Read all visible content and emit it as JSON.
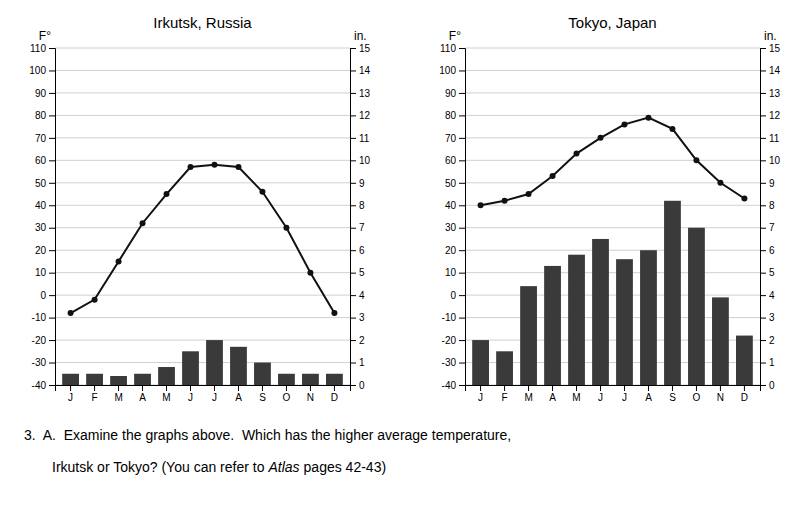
{
  "chart_data": [
    {
      "type": "bar_line",
      "title": "Irkutsk, Russia",
      "categories": [
        "J",
        "F",
        "M",
        "A",
        "M",
        "J",
        "J",
        "A",
        "S",
        "O",
        "N",
        "D"
      ],
      "series": [
        {
          "type": "bar",
          "axis": "y2",
          "color": "#3a3a3a",
          "values": [
            0.5,
            0.5,
            0.4,
            0.5,
            0.8,
            1.5,
            2.0,
            1.7,
            1.0,
            0.5,
            0.5,
            0.5
          ]
        },
        {
          "type": "line",
          "color": "#111111",
          "marker": "circle",
          "values": [
            -8,
            -2,
            15,
            32,
            45,
            57,
            58,
            57,
            46,
            30,
            10,
            -8
          ]
        }
      ],
      "ylabel": "F°",
      "y2label": "in.",
      "ylim": [
        -40,
        110
      ],
      "yticks": [
        -40,
        -30,
        -20,
        -10,
        0,
        10,
        20,
        30,
        40,
        50,
        60,
        70,
        80,
        90,
        100,
        110
      ],
      "y2lim": [
        0,
        15
      ],
      "y2ticks": [
        0,
        1,
        2,
        3,
        4,
        5,
        6,
        7,
        8,
        9,
        10,
        11,
        12,
        13,
        14,
        15
      ],
      "grid": true,
      "annotations": [
        "3.  A.  Examine the graphs above.  Which has the higher average temperature,",
        "Irkutsk or Tokyo? (You can refer to",
        "Atlas",
        "pages 42-43)"
      ]
    },
    {
      "type": "bar_line",
      "title": "Tokyo, Japan",
      "categories": [
        "J",
        "F",
        "M",
        "A",
        "M",
        "J",
        "J",
        "A",
        "S",
        "O",
        "N",
        "D"
      ],
      "series": [
        {
          "type": "bar",
          "axis": "y2",
          "color": "#3a3a3a",
          "values": [
            2.0,
            1.5,
            4.4,
            5.3,
            5.8,
            6.5,
            5.6,
            6.0,
            8.2,
            7.0,
            3.9,
            2.2
          ]
        },
        {
          "type": "line",
          "color": "#111111",
          "marker": "circle",
          "values": [
            40,
            42,
            45,
            53,
            63,
            70,
            76,
            79,
            74,
            60,
            50,
            43
          ]
        }
      ],
      "ylabel": "F°",
      "y2label": "in.",
      "ylim": [
        -40,
        110
      ],
      "yticks": [
        -40,
        -30,
        -20,
        -10,
        0,
        10,
        20,
        30,
        40,
        50,
        60,
        70,
        80,
        90,
        100,
        110
      ],
      "y2lim": [
        0,
        15
      ],
      "y2ticks": [
        0,
        1,
        2,
        3,
        4,
        5,
        6,
        7,
        8,
        9,
        10,
        11,
        12,
        13,
        14,
        15
      ],
      "grid": true
    }
  ]
}
